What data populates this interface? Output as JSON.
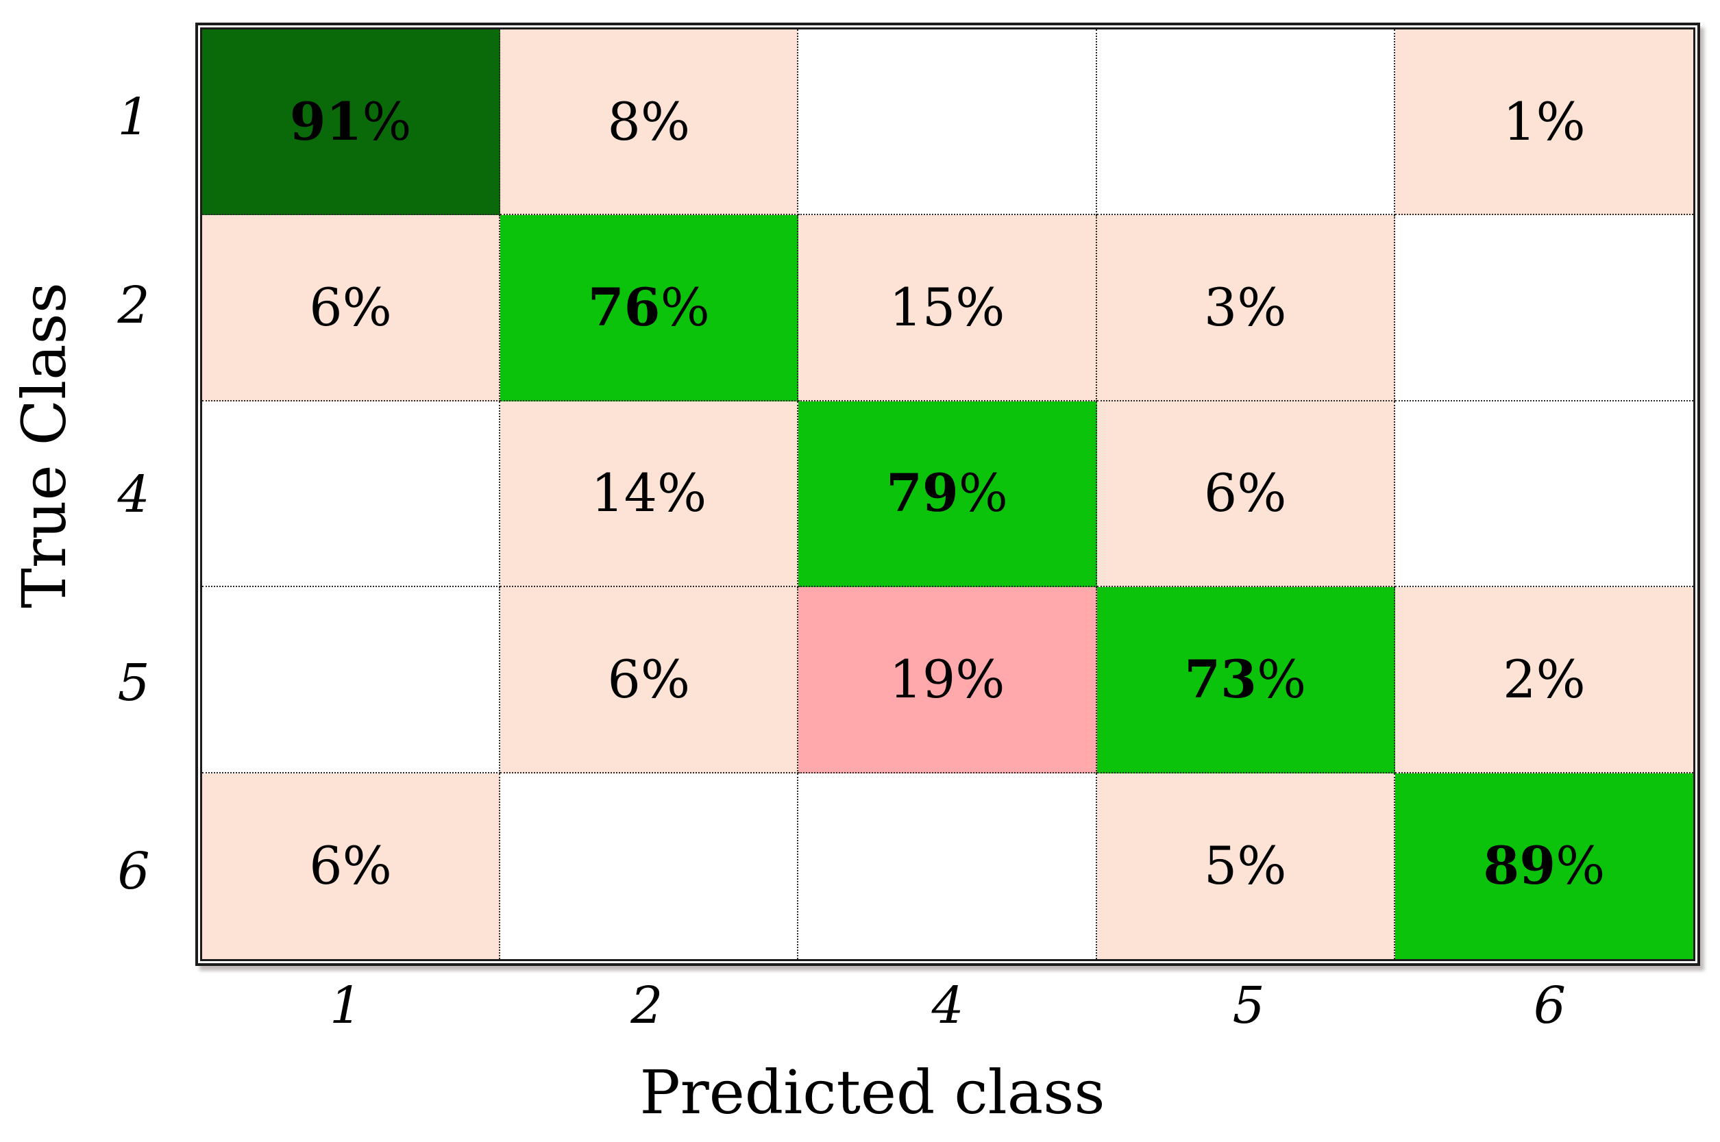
{
  "colors": {
    "dark_green": "#0a6a0a",
    "green": "#0cc30c",
    "peach": "#fce3d5",
    "pink": "#ffa9ac",
    "white": "#ffffff",
    "text": "#000000",
    "grid_line": "#2b2b2b"
  },
  "chart_data": {
    "type": "heatmap",
    "title": "",
    "xlabel": "Predicted class",
    "ylabel": "True Class",
    "x_categories": [
      "1",
      "2",
      "4",
      "5",
      "6"
    ],
    "y_categories": [
      "1",
      "2",
      "4",
      "5",
      "6"
    ],
    "value_suffix": "%",
    "values_percent": [
      [
        91,
        8,
        null,
        null,
        1
      ],
      [
        6,
        76,
        15,
        3,
        null
      ],
      [
        null,
        14,
        79,
        6,
        null
      ],
      [
        null,
        6,
        19,
        73,
        2
      ],
      [
        6,
        null,
        null,
        5,
        89
      ]
    ],
    "cell_styles": [
      [
        "dark_green",
        "peach",
        "white",
        "white",
        "peach"
      ],
      [
        "peach",
        "green",
        "peach",
        "peach",
        "white"
      ],
      [
        "white",
        "peach",
        "green",
        "peach",
        "white"
      ],
      [
        "white",
        "peach",
        "pink",
        "green",
        "peach"
      ],
      [
        "peach",
        "white",
        "white",
        "peach",
        "green"
      ]
    ],
    "diagonal_bold": true,
    "grid": "dotted",
    "legend": "none"
  }
}
